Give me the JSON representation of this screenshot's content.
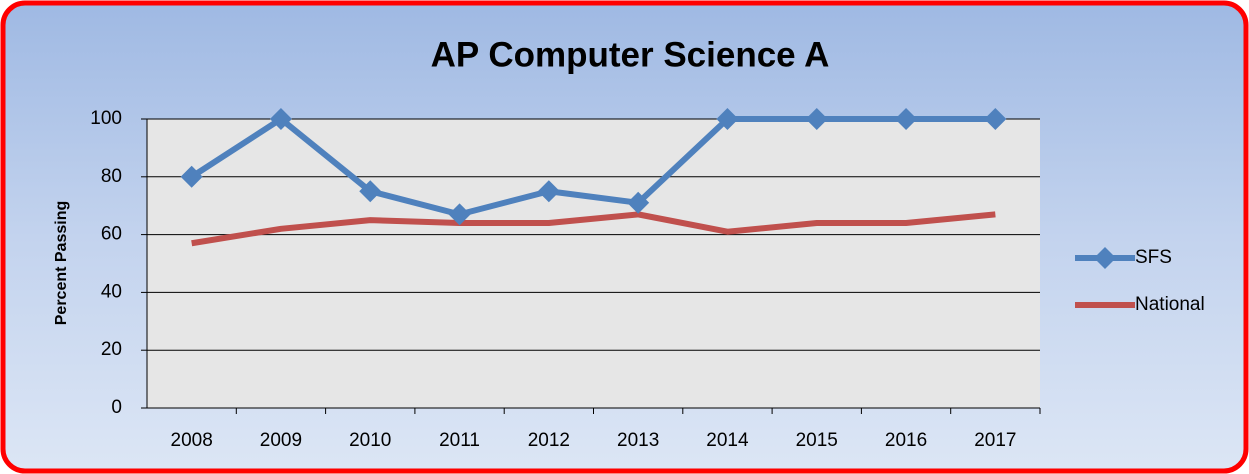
{
  "chart_data": {
    "type": "line",
    "title": "AP Computer Science A",
    "y_label": "Percent Passing",
    "categories": [
      "2008",
      "2009",
      "2010",
      "2011",
      "2012",
      "2013",
      "2014",
      "2015",
      "2016",
      "2017"
    ],
    "series": [
      {
        "name": "SFS",
        "color": "#4f81bd",
        "marker": "diamond",
        "values": [
          80,
          100,
          75,
          67,
          75,
          71,
          100,
          100,
          100,
          100
        ]
      },
      {
        "name": "National",
        "color": "#c0504d",
        "values": [
          57,
          62,
          65,
          64,
          64,
          67,
          61,
          64,
          64,
          67
        ]
      }
    ],
    "ylim": [
      0,
      100
    ],
    "yticks": [
      0,
      20,
      40,
      60,
      80,
      100
    ],
    "grid": true,
    "legend": "right"
  }
}
